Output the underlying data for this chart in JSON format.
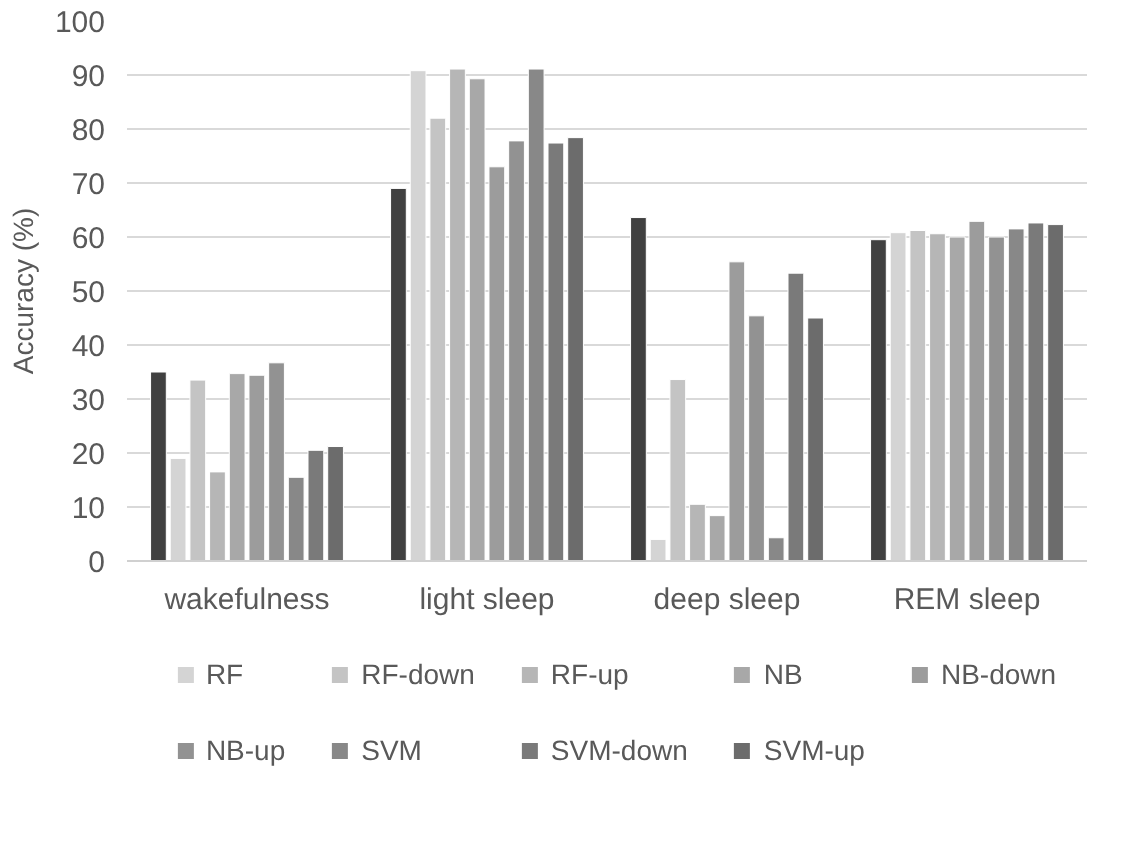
{
  "chart_data": {
    "type": "bar",
    "ylabel": "Accuracy (%)",
    "categories": [
      "wakefulness",
      "light sleep",
      "deep sleep",
      "REM sleep"
    ],
    "ylim": [
      0,
      100
    ],
    "yticks": [
      0,
      10,
      20,
      30,
      40,
      50,
      60,
      70,
      80,
      90,
      100
    ],
    "grid": "y",
    "legend": "bottom",
    "series": [
      {
        "color": "#404040",
        "values": [
          35,
          69,
          63.6,
          59.5
        ]
      },
      {
        "name": "RF",
        "color": "#d4d4d4",
        "values": [
          19,
          90.8,
          4,
          60.8
        ]
      },
      {
        "name": "RF-down",
        "color": "#c4c4c4",
        "values": [
          33.5,
          82,
          33.6,
          61.2
        ]
      },
      {
        "name": "RF-up",
        "color": "#b6b6b6",
        "values": [
          16.5,
          91.1,
          10.5,
          60.6
        ]
      },
      {
        "name": "NB",
        "color": "#a8a8a8",
        "values": [
          34.7,
          89.3,
          8.4,
          60
        ]
      },
      {
        "name": "NB-down",
        "color": "#9c9c9c",
        "values": [
          34.4,
          73,
          55.4,
          62.9
        ]
      },
      {
        "name": "NB-up",
        "color": "#929292",
        "values": [
          36.7,
          77.8,
          45.4,
          60
        ]
      },
      {
        "name": "SVM",
        "color": "#888888",
        "values": [
          15.5,
          91.1,
          4.3,
          61.5
        ]
      },
      {
        "name": "SVM-down",
        "color": "#7a7a7a",
        "values": [
          20.5,
          77.4,
          53.3,
          62.6
        ]
      },
      {
        "name": "SVM-up",
        "color": "#6c6c6c",
        "values": [
          21.2,
          78.4,
          45,
          62.3
        ]
      }
    ]
  }
}
